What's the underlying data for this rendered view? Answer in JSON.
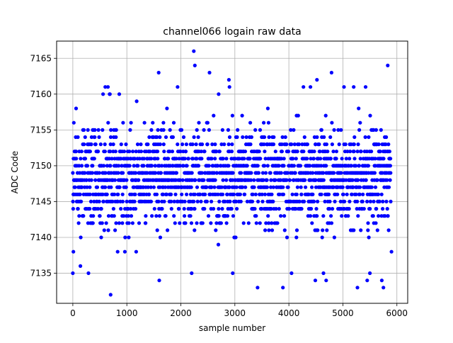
{
  "chart_data": {
    "type": "scatter",
    "title": "channel066 logain raw data",
    "xlabel": "sample number",
    "ylabel": "ADC Code",
    "xlim": [
      -300,
      6200
    ],
    "ylim": [
      7130.8,
      7167.4
    ],
    "xticks": [
      0,
      1000,
      2000,
      3000,
      4000,
      5000,
      6000
    ],
    "yticks": [
      7135,
      7140,
      7145,
      7150,
      7155,
      7160,
      7165
    ],
    "grid": true,
    "marker_color": "#0000ff",
    "sample_count": 5888,
    "series": [
      {
        "values_note_range": [
          7132,
          7166
        ],
        "points": [
          [
            0,
            7135
          ],
          [
            10,
            7138
          ],
          [
            20,
            7148
          ],
          [
            30,
            7152
          ],
          [
            60,
            7158
          ],
          [
            140,
            7136
          ],
          [
            290,
            7135
          ],
          [
            700,
            7132
          ],
          [
            830,
            7138
          ],
          [
            560,
            7160
          ],
          [
            600,
            7161
          ],
          [
            650,
            7161
          ],
          [
            680,
            7160
          ],
          [
            860,
            7160
          ],
          [
            1590,
            7163
          ],
          [
            1600,
            7134
          ],
          [
            1940,
            7161
          ],
          [
            2130,
            7148
          ],
          [
            2200,
            7135
          ],
          [
            2240,
            7166
          ],
          [
            2260,
            7164
          ],
          [
            2530,
            7163
          ],
          [
            2700,
            7160
          ],
          [
            2890,
            7162
          ],
          [
            2900,
            7161
          ],
          [
            2960,
            7135
          ],
          [
            3420,
            7133
          ],
          [
            3610,
            7158
          ],
          [
            3890,
            7133
          ],
          [
            4050,
            7135
          ],
          [
            4270,
            7161
          ],
          [
            4400,
            7161
          ],
          [
            4490,
            7134
          ],
          [
            4520,
            7162
          ],
          [
            4640,
            7135
          ],
          [
            4690,
            7134
          ],
          [
            4790,
            7163
          ],
          [
            5020,
            7161
          ],
          [
            5200,
            7161
          ],
          [
            5270,
            7133
          ],
          [
            5420,
            7161
          ],
          [
            5450,
            7134
          ],
          [
            5500,
            7135
          ],
          [
            5720,
            7134
          ],
          [
            5750,
            7133
          ],
          [
            5830,
            7164
          ],
          [
            5900,
            7138
          ]
        ]
      }
    ]
  }
}
